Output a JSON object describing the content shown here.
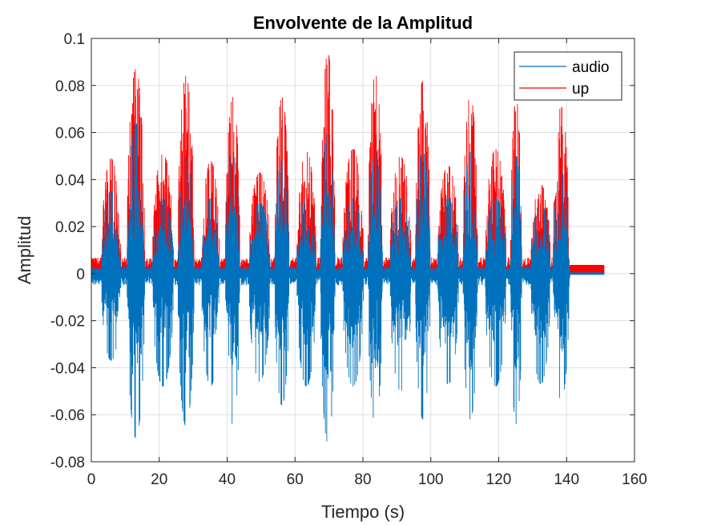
{
  "chart_data": {
    "type": "line",
    "title": "Envolvente de la Amplitud",
    "xlabel": "Tiempo (s)",
    "ylabel": "Amplitud",
    "xlim": [
      0,
      160
    ],
    "ylim": [
      -0.08,
      0.1
    ],
    "xticks": [
      0,
      20,
      40,
      60,
      80,
      100,
      120,
      140,
      160
    ],
    "yticks": [
      -0.08,
      -0.06,
      -0.04,
      -0.02,
      0,
      0.02,
      0.04,
      0.06,
      0.08,
      0.1
    ],
    "xtick_labels": [
      "0",
      "20",
      "40",
      "60",
      "80",
      "100",
      "120",
      "140",
      "160"
    ],
    "ytick_labels": [
      "-0.08",
      "-0.06",
      "-0.04",
      "-0.02",
      "0",
      "0.02",
      "0.04",
      "0.06",
      "0.08",
      "0.1"
    ],
    "grid": true,
    "legend_position": "top-right",
    "series": [
      {
        "name": "audio",
        "color": "#0072BD",
        "kind": "waveform",
        "x_range": [
          0,
          151
        ],
        "bursts": [
          {
            "start": 3.0,
            "end": 9.0,
            "upper": 0.033,
            "lower": -0.035
          },
          {
            "start": 10.5,
            "end": 16.0,
            "upper": 0.062,
            "lower": -0.068
          },
          {
            "start": 18.0,
            "end": 24.5,
            "upper": 0.03,
            "lower": -0.046
          },
          {
            "start": 25.5,
            "end": 30.5,
            "upper": 0.048,
            "lower": -0.063
          },
          {
            "start": 32.5,
            "end": 38.0,
            "upper": 0.03,
            "lower": -0.046
          },
          {
            "start": 39.5,
            "end": 44.0,
            "upper": 0.05,
            "lower": -0.062
          },
          {
            "start": 46.5,
            "end": 53.0,
            "upper": 0.028,
            "lower": -0.044
          },
          {
            "start": 54.0,
            "end": 58.5,
            "upper": 0.046,
            "lower": -0.054
          },
          {
            "start": 60.5,
            "end": 66.5,
            "upper": 0.03,
            "lower": -0.046
          },
          {
            "start": 67.5,
            "end": 72.0,
            "upper": 0.058,
            "lower": -0.07
          },
          {
            "start": 74.0,
            "end": 80.5,
            "upper": 0.03,
            "lower": -0.046
          },
          {
            "start": 81.5,
            "end": 86.0,
            "upper": 0.05,
            "lower": -0.062
          },
          {
            "start": 88.0,
            "end": 94.5,
            "upper": 0.03,
            "lower": -0.048
          },
          {
            "start": 95.5,
            "end": 100.0,
            "upper": 0.05,
            "lower": -0.06
          },
          {
            "start": 102.0,
            "end": 108.5,
            "upper": 0.03,
            "lower": -0.045
          },
          {
            "start": 109.5,
            "end": 114.0,
            "upper": 0.05,
            "lower": -0.06
          },
          {
            "start": 116.0,
            "end": 122.5,
            "upper": 0.03,
            "lower": -0.046
          },
          {
            "start": 123.5,
            "end": 127.0,
            "upper": 0.048,
            "lower": -0.062
          },
          {
            "start": 129.5,
            "end": 135.5,
            "upper": 0.028,
            "lower": -0.045
          },
          {
            "start": 136.0,
            "end": 141.0,
            "upper": 0.042,
            "lower": -0.052
          }
        ],
        "baseline": 0.002,
        "tail": {
          "start": 141.0,
          "end": 151.0,
          "level": 0.0005
        }
      },
      {
        "name": "up",
        "color": "#FF0000",
        "kind": "envelope",
        "x_range": [
          0,
          151
        ],
        "bursts": [
          {
            "start": 3.0,
            "end": 9.0,
            "peak": 0.046
          },
          {
            "start": 10.5,
            "end": 16.0,
            "peak": 0.084
          },
          {
            "start": 18.0,
            "end": 24.5,
            "peak": 0.048
          },
          {
            "start": 25.5,
            "end": 30.5,
            "peak": 0.081
          },
          {
            "start": 32.5,
            "end": 38.0,
            "peak": 0.045
          },
          {
            "start": 39.5,
            "end": 44.0,
            "peak": 0.072
          },
          {
            "start": 46.5,
            "end": 53.0,
            "peak": 0.04
          },
          {
            "start": 54.0,
            "end": 58.5,
            "peak": 0.072
          },
          {
            "start": 60.5,
            "end": 66.5,
            "peak": 0.049
          },
          {
            "start": 67.5,
            "end": 72.0,
            "peak": 0.091
          },
          {
            "start": 74.0,
            "end": 80.5,
            "peak": 0.05
          },
          {
            "start": 81.5,
            "end": 86.0,
            "peak": 0.082
          },
          {
            "start": 88.0,
            "end": 94.5,
            "peak": 0.047
          },
          {
            "start": 95.5,
            "end": 100.0,
            "peak": 0.079
          },
          {
            "start": 102.0,
            "end": 108.5,
            "peak": 0.043
          },
          {
            "start": 109.5,
            "end": 114.0,
            "peak": 0.073
          },
          {
            "start": 116.0,
            "end": 122.5,
            "peak": 0.05
          },
          {
            "start": 123.5,
            "end": 127.0,
            "peak": 0.071
          },
          {
            "start": 129.5,
            "end": 135.5,
            "peak": 0.035
          },
          {
            "start": 136.0,
            "end": 141.0,
            "peak": 0.068
          }
        ],
        "baseline": 0.003,
        "tail": {
          "start": 141.0,
          "end": 151.0,
          "level": 0.0035
        }
      }
    ]
  }
}
